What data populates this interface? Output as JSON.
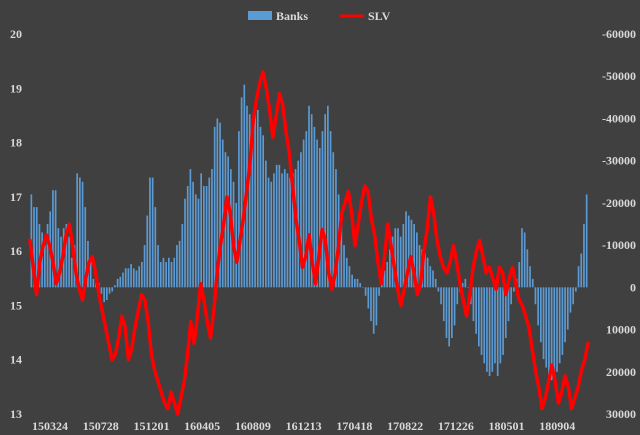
{
  "chart_data": {
    "type": "bar",
    "legend_position": "top-center",
    "colors": {
      "background": "#404040",
      "banks": "#5b9bd5",
      "slv": "#ff0000",
      "text": "#d9d9d9"
    },
    "x_tick_labels": [
      "150324",
      "150728",
      "151201",
      "160405",
      "160809",
      "161213",
      "170418",
      "170822",
      "171226",
      "180501",
      "180904"
    ],
    "left_axis": {
      "min": 13,
      "max": 20,
      "ticks": [
        "13",
        "14",
        "15",
        "16",
        "17",
        "18",
        "19",
        "20"
      ]
    },
    "right_axis": {
      "min": 30000,
      "max": -60000,
      "ticks": [
        "30000",
        "20000",
        "10000",
        "0",
        "-10000",
        "-20000",
        "-30000",
        "-40000",
        "-50000",
        "-60000"
      ]
    },
    "series": [
      {
        "name": "Banks",
        "kind": "bar",
        "axis": "right",
        "values": [
          -22000,
          -19000,
          -19000,
          -15000,
          -13000,
          -10000,
          -15000,
          -18000,
          -23000,
          -23000,
          -14000,
          -12000,
          -14000,
          -15000,
          -12000,
          -7000,
          -10000,
          -27000,
          -26000,
          -25000,
          -19000,
          -11000,
          -6000,
          -2000,
          -1000,
          -1000,
          1500,
          3500,
          3000,
          1500,
          1000,
          -500,
          -2000,
          -2500,
          -3500,
          -4500,
          -4500,
          -5500,
          -4500,
          -4000,
          -5000,
          -6000,
          -10000,
          -17000,
          -26000,
          -26000,
          -19000,
          -10000,
          -6000,
          -7000,
          -6000,
          -7000,
          -6000,
          -7000,
          -10000,
          -11000,
          -15000,
          -21000,
          -24000,
          -28000,
          -25000,
          -22000,
          -21000,
          -27000,
          -24000,
          -24000,
          -26000,
          -28000,
          -38000,
          -40000,
          -39000,
          -35000,
          -32000,
          -31000,
          -28000,
          -25000,
          -20000,
          -37000,
          -45000,
          -48000,
          -43000,
          -41000,
          -39000,
          -41000,
          -42000,
          -38000,
          -36000,
          -30000,
          -26000,
          -25000,
          -27000,
          -29000,
          -29000,
          -27000,
          -28000,
          -27000,
          -26000,
          -27000,
          -28000,
          -30000,
          -32000,
          -35000,
          -37000,
          -43000,
          -41000,
          -38000,
          -35000,
          -33000,
          -37000,
          -41000,
          -43000,
          -37000,
          -32000,
          -28000,
          -22000,
          -16000,
          -10000,
          -7000,
          -5000,
          -3000,
          -2000,
          -2000,
          -1000,
          0,
          2000,
          5000,
          8000,
          11000,
          9000,
          2000,
          -1000,
          -4000,
          -6000,
          -9000,
          -12000,
          -14000,
          -14000,
          -12000,
          -15000,
          -18000,
          -17000,
          -16000,
          -15000,
          -13000,
          -10000,
          -9000,
          -8000,
          -7000,
          -5000,
          -4000,
          -2000,
          1000,
          4000,
          8000,
          12000,
          14000,
          12000,
          9000,
          4000,
          1000,
          -1000,
          -2000,
          0,
          4000,
          8000,
          11000,
          14000,
          16000,
          18000,
          20000,
          21000,
          20000,
          18000,
          21000,
          18000,
          16000,
          12000,
          8000,
          4000,
          1000,
          -2000,
          -6000,
          -14000,
          -13000,
          -9000,
          -5000,
          -2000,
          4000,
          9000,
          13000,
          17000,
          19000,
          21000,
          22000,
          21000,
          20000,
          18000,
          16000,
          13000,
          10000,
          6000,
          4000,
          1000,
          -5000,
          -8000,
          -15000,
          -22000
        ],
        "bar_approx": true
      },
      {
        "name": "SLV",
        "kind": "line",
        "axis": "left",
        "values": [
          16.2,
          15.7,
          15.2,
          15.8,
          16.1,
          16.3,
          16.1,
          15.8,
          15.4,
          15.6,
          15.9,
          16.3,
          16.5,
          16.1,
          15.6,
          15.3,
          15.1,
          15.5,
          15.8,
          15.9,
          15.6,
          15.2,
          14.9,
          14.6,
          14.3,
          14.0,
          14.1,
          14.4,
          14.8,
          14.6,
          14.0,
          14.2,
          14.6,
          14.9,
          15.2,
          15.1,
          14.7,
          14.1,
          13.8,
          13.6,
          13.4,
          13.2,
          13.1,
          13.4,
          13.2,
          13.0,
          13.3,
          13.6,
          14.1,
          14.7,
          14.3,
          14.8,
          15.4,
          15.1,
          14.7,
          14.4,
          14.9,
          15.6,
          16.1,
          16.5,
          17.0,
          16.7,
          16.1,
          15.8,
          16.2,
          16.6,
          17.1,
          17.6,
          18.4,
          18.8,
          19.1,
          19.3,
          19.0,
          18.6,
          18.1,
          18.5,
          18.9,
          18.7,
          18.2,
          17.8,
          17.2,
          16.6,
          16.2,
          15.7,
          15.9,
          16.3,
          15.8,
          15.4,
          15.9,
          16.4,
          16.2,
          15.6,
          15.3,
          15.6,
          16.1,
          16.7,
          16.9,
          17.1,
          16.7,
          16.1,
          16.5,
          16.9,
          17.2,
          17.1,
          16.6,
          16.3,
          15.8,
          15.4,
          15.9,
          16.5,
          16.1,
          15.7,
          15.3,
          15.0,
          15.3,
          15.6,
          15.9,
          15.6,
          15.2,
          15.4,
          16.0,
          16.4,
          17.0,
          16.7,
          16.2,
          15.9,
          15.7,
          15.6,
          15.8,
          16.1,
          15.8,
          15.4,
          15.1,
          14.8,
          15.2,
          15.7,
          16.0,
          16.2,
          15.9,
          15.6,
          15.7,
          15.5,
          15.3,
          15.7,
          15.6,
          15.2,
          15.5,
          15.7,
          15.4,
          15.1,
          15.0,
          14.8,
          14.6,
          14.2,
          13.8,
          13.5,
          13.1,
          13.3,
          13.6,
          13.9,
          13.6,
          13.2,
          13.4,
          13.7,
          13.5,
          13.1,
          13.3,
          13.5,
          13.8,
          14.0,
          14.3
        ],
        "line_approx": true
      }
    ]
  }
}
